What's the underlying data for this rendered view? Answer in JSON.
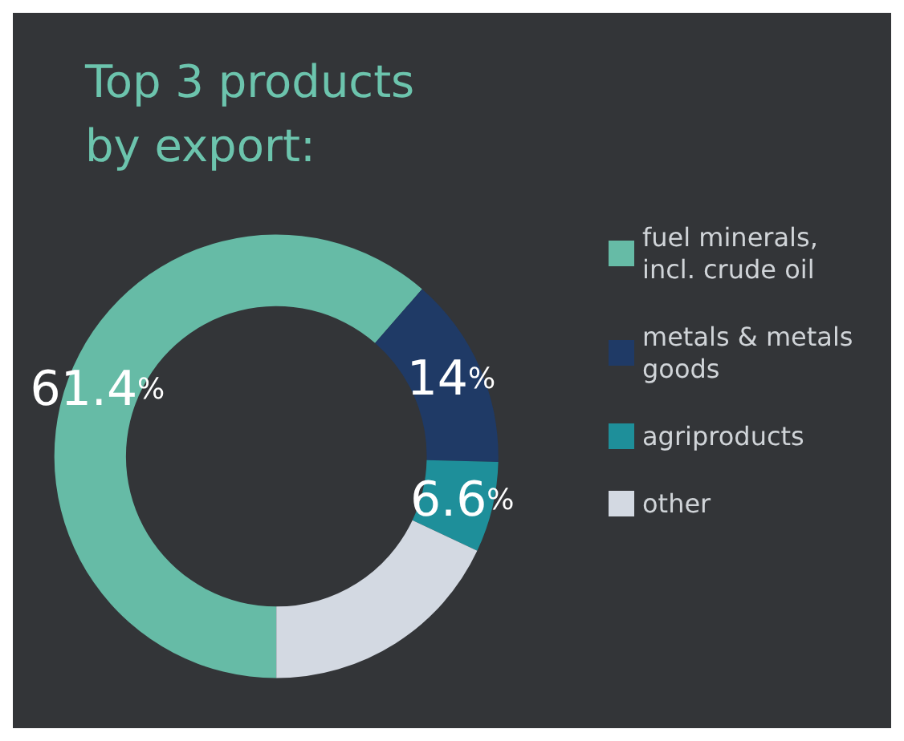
{
  "chart_data": {
    "type": "donut",
    "title": "Top 3 products\nby export:",
    "categories": [
      "fuel minerals, incl. crude oil",
      "metals & metals goods",
      "agriproducts",
      "other"
    ],
    "values": [
      61.4,
      14,
      6.6,
      18
    ],
    "colors": [
      "#66bba6",
      "#1f3a66",
      "#1e8f9a",
      "#d3d9e2"
    ],
    "value_labels": [
      "61.4%",
      "14%",
      "6.6%",
      null
    ],
    "legend": "right"
  }
}
